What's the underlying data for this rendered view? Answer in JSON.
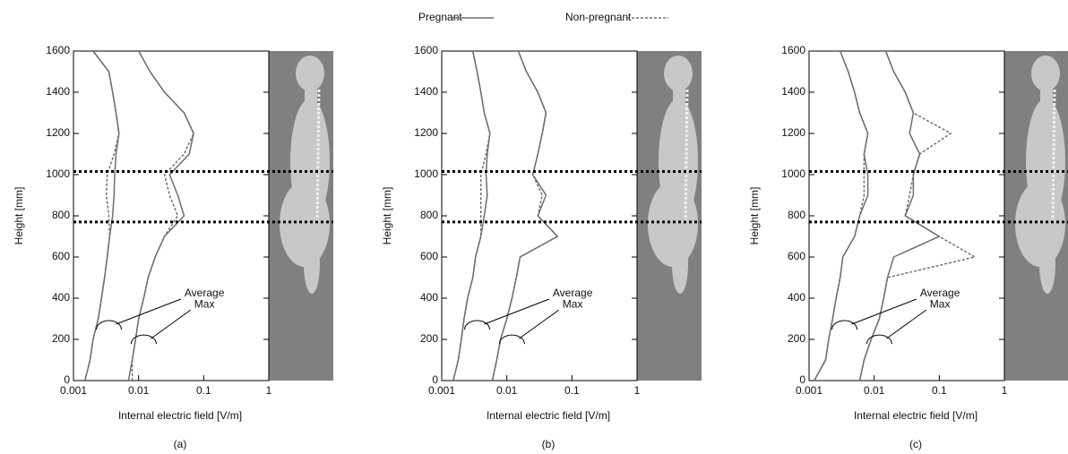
{
  "legend": [
    {
      "name": "Pregnant",
      "color": "#6e6e6e",
      "dash": "none"
    },
    {
      "name": "Non-pregnant",
      "color": "#6e6e6e",
      "dash": "3,2"
    }
  ],
  "chart_data": [
    {
      "type": "line",
      "panel": "(a)",
      "xlabel": "Internal electric field [V/m]",
      "ylabel": "Height [mm]",
      "x_scale": "log",
      "xlim": [
        0.001,
        1
      ],
      "xticks": [
        0.001,
        0.01,
        0.1,
        1
      ],
      "ylim": [
        0,
        1600
      ],
      "yticks": [
        0,
        200,
        400,
        600,
        800,
        1000,
        1200,
        1400,
        1600
      ],
      "reference_lines": [
        770,
        1015
      ],
      "annotations": [
        "Average",
        "Max"
      ],
      "heights": [
        0,
        100,
        200,
        300,
        400,
        500,
        600,
        700,
        800,
        900,
        1000,
        1100,
        1200,
        1300,
        1400,
        1500,
        1600
      ],
      "series": [
        {
          "average": [
            0.0015,
            0.0018,
            0.002,
            0.0024,
            0.0027,
            0.003,
            0.0033,
            0.0036,
            0.004,
            0.0042,
            0.0043,
            0.0045,
            0.005,
            0.0045,
            0.004,
            0.0035,
            0.002
          ],
          "max": [
            0.007,
            0.008,
            0.009,
            0.01,
            0.012,
            0.014,
            0.018,
            0.025,
            0.05,
            0.04,
            0.03,
            0.06,
            0.07,
            0.05,
            0.025,
            0.015,
            0.01
          ]
        },
        {
          "average": [
            0.0015,
            0.0018,
            0.002,
            0.0024,
            0.0027,
            0.003,
            0.0033,
            0.0036,
            0.0035,
            0.0032,
            0.0033,
            0.0042,
            0.005,
            0.0045,
            0.004,
            0.0035,
            0.002
          ],
          "max": [
            0.008,
            0.008,
            0.009,
            0.01,
            0.012,
            0.014,
            0.018,
            0.025,
            0.04,
            0.03,
            0.025,
            0.05,
            0.07,
            0.05,
            0.025,
            0.015,
            0.01
          ]
        }
      ]
    },
    {
      "type": "line",
      "panel": "(b)",
      "xlabel": "Internal electric field [V/m]",
      "ylabel": "Height [mm]",
      "x_scale": "log",
      "xlim": [
        0.001,
        1
      ],
      "xticks": [
        0.001,
        0.01,
        0.1,
        1
      ],
      "ylim": [
        0,
        1600
      ],
      "yticks": [
        0,
        200,
        400,
        600,
        800,
        1000,
        1200,
        1400,
        1600
      ],
      "reference_lines": [
        770,
        1015
      ],
      "annotations": [
        "Average",
        "Max"
      ],
      "heights": [
        0,
        100,
        200,
        300,
        400,
        500,
        600,
        700,
        800,
        900,
        1000,
        1100,
        1200,
        1300,
        1400,
        1500,
        1600
      ],
      "series": [
        {
          "average": [
            0.0015,
            0.0018,
            0.002,
            0.0022,
            0.0025,
            0.003,
            0.0033,
            0.004,
            0.0045,
            0.005,
            0.0048,
            0.005,
            0.0055,
            0.0045,
            0.004,
            0.0035,
            0.003
          ],
          "max": [
            0.006,
            0.007,
            0.008,
            0.01,
            0.012,
            0.014,
            0.016,
            0.06,
            0.03,
            0.04,
            0.025,
            0.03,
            0.035,
            0.04,
            0.03,
            0.02,
            0.015
          ]
        },
        {
          "average": [
            0.0015,
            0.0018,
            0.002,
            0.0022,
            0.0025,
            0.003,
            0.0033,
            0.004,
            0.004,
            0.004,
            0.004,
            0.0048,
            0.0055,
            0.0045,
            0.004,
            0.0035,
            0.003
          ],
          "max": [
            0.006,
            0.007,
            0.008,
            0.01,
            0.012,
            0.014,
            0.016,
            0.06,
            0.03,
            0.035,
            0.025,
            0.03,
            0.035,
            0.04,
            0.03,
            0.02,
            0.015
          ]
        }
      ]
    },
    {
      "type": "line",
      "panel": "(c)",
      "xlabel": "Internal electric field [V/m]",
      "ylabel": "Height [mm]",
      "x_scale": "log",
      "xlim": [
        0.001,
        1
      ],
      "xticks": [
        0.001,
        0.01,
        0.1,
        1
      ],
      "ylim": [
        0,
        1600
      ],
      "yticks": [
        0,
        200,
        400,
        600,
        800,
        1000,
        1200,
        1400,
        1600
      ],
      "reference_lines": [
        770,
        1015
      ],
      "annotations": [
        "Average",
        "Max"
      ],
      "heights": [
        0,
        100,
        200,
        300,
        400,
        500,
        600,
        700,
        800,
        900,
        1000,
        1100,
        1200,
        1300,
        1400,
        1500,
        1600
      ],
      "series": [
        {
          "average": [
            0.0012,
            0.0018,
            0.002,
            0.0023,
            0.0026,
            0.003,
            0.0033,
            0.005,
            0.006,
            0.008,
            0.008,
            0.007,
            0.008,
            0.006,
            0.005,
            0.004,
            0.003
          ],
          "max": [
            0.006,
            0.007,
            0.009,
            0.012,
            0.014,
            0.016,
            0.02,
            0.1,
            0.03,
            0.04,
            0.04,
            0.05,
            0.035,
            0.04,
            0.03,
            0.02,
            0.015
          ]
        },
        {
          "average": [
            0.0012,
            0.0018,
            0.002,
            0.0023,
            0.0026,
            0.003,
            0.0033,
            0.005,
            0.006,
            0.007,
            0.007,
            0.007,
            0.008,
            0.006,
            0.005,
            0.004,
            0.003
          ],
          "max": [
            0.006,
            0.007,
            0.009,
            0.012,
            0.014,
            0.016,
            0.35,
            0.1,
            0.03,
            0.035,
            0.04,
            0.05,
            0.15,
            0.04,
            0.03,
            0.02,
            0.015
          ]
        }
      ]
    }
  ]
}
